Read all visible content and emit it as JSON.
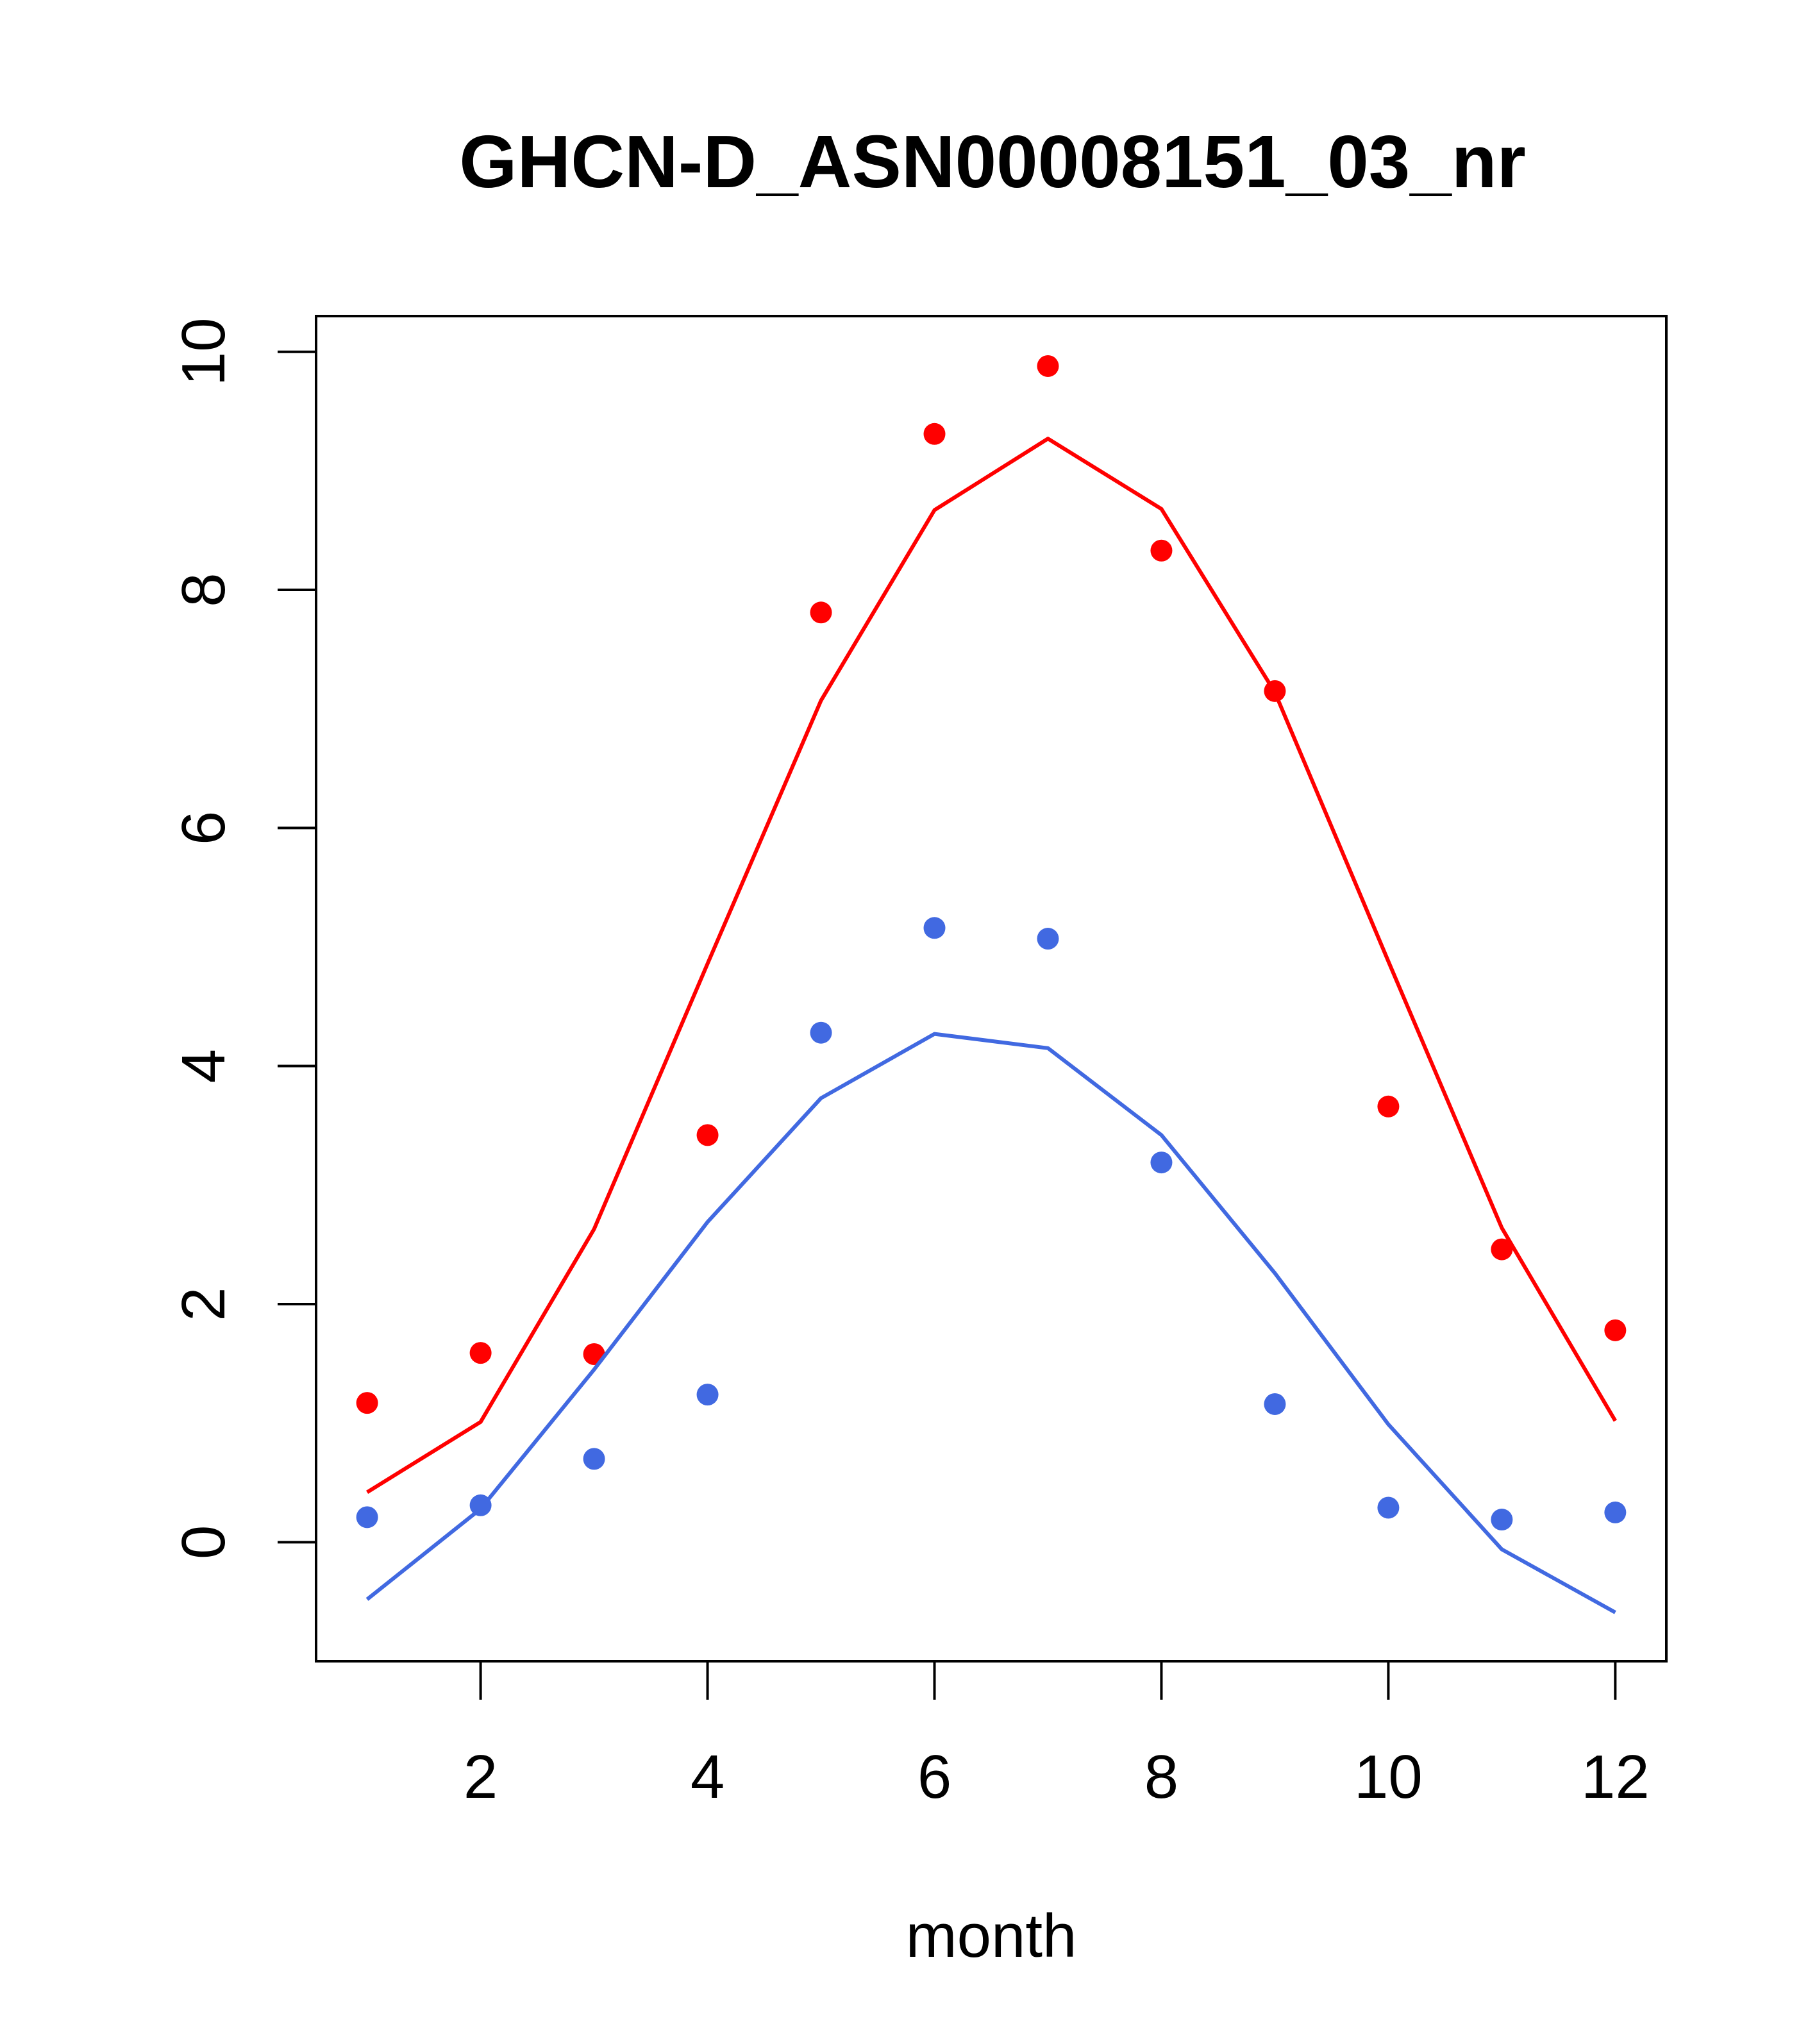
{
  "chart_data": {
    "type": "line",
    "title": "GHCN-D_ASN00008151_03_nr",
    "xlabel": "month",
    "ylabel": "",
    "xlim": [
      0.55,
      12.45
    ],
    "ylim": [
      -1.0,
      10.3
    ],
    "xticks": [
      2,
      4,
      6,
      8,
      10,
      12
    ],
    "yticks": [
      0,
      2,
      4,
      6,
      8,
      10
    ],
    "grid": false,
    "legend": "none",
    "series": [
      {
        "color": "#ff0000",
        "x": [
          1,
          2,
          3,
          4,
          5,
          6,
          7,
          8,
          9,
          10,
          11,
          12
        ],
        "points": [
          1.17,
          1.59,
          1.58,
          3.42,
          7.81,
          9.31,
          9.88,
          8.33,
          7.15,
          3.66,
          2.46,
          1.78
        ],
        "line": [
          0.42,
          1.01,
          2.63,
          4.86,
          7.07,
          8.67,
          9.27,
          8.68,
          7.14,
          4.88,
          2.64,
          1.02
        ]
      },
      {
        "color": "#4169e1",
        "x": [
          1,
          2,
          3,
          4,
          5,
          6,
          7,
          8,
          9,
          10,
          11,
          12
        ],
        "points": [
          0.21,
          0.31,
          0.7,
          1.24,
          4.28,
          5.16,
          5.07,
          3.19,
          1.16,
          0.29,
          0.19,
          0.25
        ],
        "line": [
          -0.48,
          0.28,
          1.45,
          2.69,
          3.73,
          4.27,
          4.15,
          3.42,
          2.26,
          0.99,
          -0.06,
          -0.59
        ]
      }
    ]
  }
}
